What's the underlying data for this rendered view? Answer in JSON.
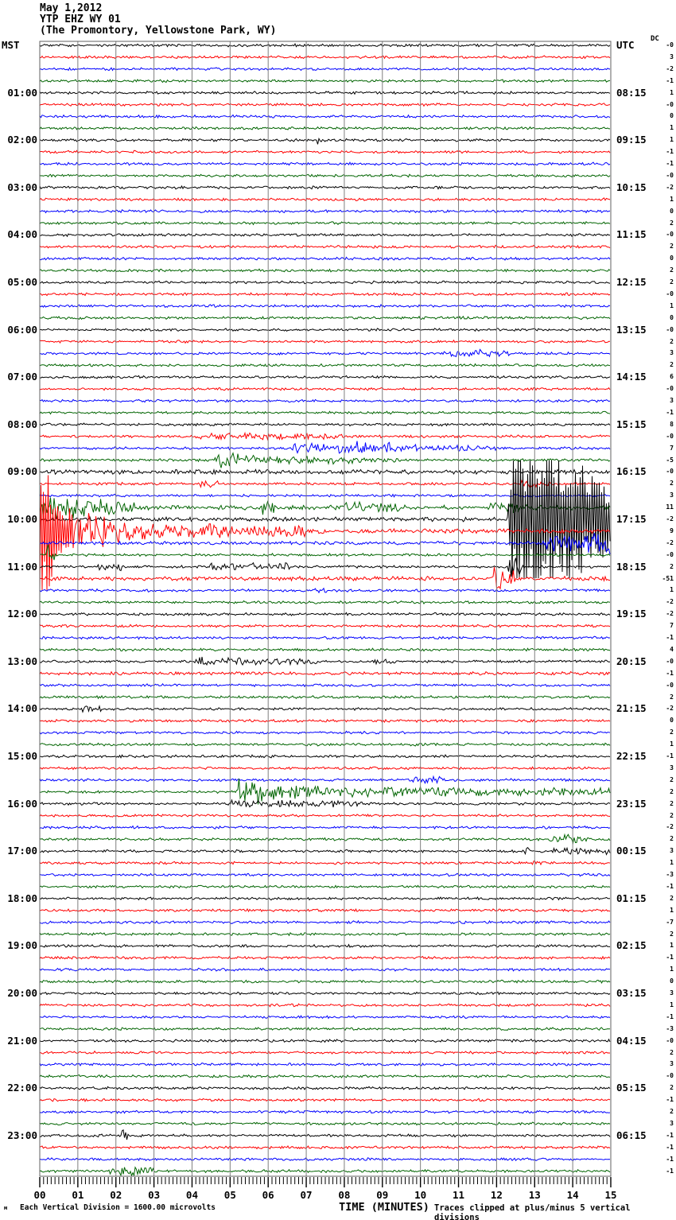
{
  "title": {
    "date": "May 1,2012",
    "station": "YTP EHZ WY 01",
    "location": "(The Promontory, Yellowstone Park, WY)"
  },
  "axes": {
    "left_tz": "MST",
    "right_tz": "UTC",
    "dc_header": "DC",
    "x_title": "TIME (MINUTES)",
    "x_ticks": [
      "00",
      "01",
      "02",
      "03",
      "04",
      "05",
      "06",
      "07",
      "08",
      "09",
      "10",
      "11",
      "12",
      "13",
      "14",
      "15"
    ]
  },
  "footer": {
    "scale": "Each Vertical Division = 1600.00 microvolts",
    "clip_note": "Traces clipped at plus/minus 5 vertical divisions",
    "watermark": "м"
  },
  "colors": {
    "k": "#000000",
    "r": "#ff0000",
    "b": "#0000ff",
    "g": "#006400",
    "grid": "#7f7f7f",
    "frame": "#606060"
  },
  "chart_data": {
    "type": "line",
    "subtype": "seismogram-helicorder",
    "x_label": "TIME (MINUTES)",
    "x_range": [
      0,
      15
    ],
    "minutes_per_line": 15,
    "lines_per_hour": 4,
    "clip_divisions": 5,
    "microvolts_per_division": "1600.00",
    "rows": [
      {
        "c": "k",
        "l": "MST",
        "r": "UTC",
        "dc": "-0"
      },
      {
        "c": "r",
        "dc": "3"
      },
      {
        "c": "b",
        "dc": "-2"
      },
      {
        "c": "g",
        "dc": "-1"
      },
      {
        "c": "k",
        "l": "01:00",
        "r": "08:15",
        "dc": "1"
      },
      {
        "c": "r",
        "dc": "-0"
      },
      {
        "c": "b",
        "dc": "0"
      },
      {
        "c": "g",
        "dc": "1"
      },
      {
        "c": "k",
        "l": "02:00",
        "r": "09:15",
        "dc": "1",
        "e": [
          [
            7.25,
            7.45,
            7,
            7
          ]
        ]
      },
      {
        "c": "r",
        "dc": "-1"
      },
      {
        "c": "b",
        "dc": "-1"
      },
      {
        "c": "g",
        "dc": "-0"
      },
      {
        "c": "k",
        "l": "03:00",
        "r": "10:15",
        "dc": "-2"
      },
      {
        "c": "r",
        "dc": "1"
      },
      {
        "c": "b",
        "dc": "0"
      },
      {
        "c": "g",
        "dc": "2"
      },
      {
        "c": "k",
        "l": "04:00",
        "r": "11:15",
        "dc": "-0"
      },
      {
        "c": "r",
        "dc": "2"
      },
      {
        "c": "b",
        "dc": "0"
      },
      {
        "c": "g",
        "dc": "2"
      },
      {
        "c": "k",
        "l": "05:00",
        "r": "12:15",
        "dc": "2"
      },
      {
        "c": "r",
        "dc": "-0"
      },
      {
        "c": "b",
        "dc": "1"
      },
      {
        "c": "g",
        "dc": "0"
      },
      {
        "c": "k",
        "l": "06:00",
        "r": "13:15",
        "dc": "-0"
      },
      {
        "c": "r",
        "dc": "2"
      },
      {
        "c": "b",
        "dc": "3",
        "e": [
          [
            10.6,
            12.4,
            2.5,
            2.5
          ]
        ]
      },
      {
        "c": "g",
        "dc": "2"
      },
      {
        "c": "k",
        "l": "07:00",
        "r": "14:15",
        "dc": "6"
      },
      {
        "c": "r",
        "dc": "-0"
      },
      {
        "c": "b",
        "dc": "3"
      },
      {
        "c": "g",
        "dc": "-1"
      },
      {
        "c": "k",
        "l": "08:00",
        "r": "15:15",
        "dc": "8"
      },
      {
        "c": "r",
        "dc": "-0",
        "e": [
          [
            4,
            8,
            2,
            1.8
          ]
        ]
      },
      {
        "c": "b",
        "dc": "7",
        "e": [
          [
            6.6,
            8,
            4,
            5
          ],
          [
            8,
            9.6,
            6,
            4.5
          ],
          [
            9.6,
            12,
            2.5,
            1.8
          ]
        ]
      },
      {
        "c": "g",
        "dc": "-5",
        "e": [
          [
            4.6,
            5.3,
            7,
            5
          ],
          [
            5.3,
            7.5,
            4,
            3
          ],
          [
            7.5,
            9.5,
            2.5,
            1.5
          ]
        ]
      },
      {
        "c": "k",
        "l": "09:00",
        "r": "16:15",
        "dc": "-0",
        "b": 2.3
      },
      {
        "c": "r",
        "dc": "2",
        "e": [
          [
            4.2,
            4.7,
            3,
            3
          ],
          [
            12.6,
            13.4,
            3,
            3
          ]
        ]
      },
      {
        "c": "b",
        "dc": "3"
      },
      {
        "c": "g",
        "dc": "11",
        "b": 2.4,
        "e": [
          [
            0,
            0.6,
            14,
            9
          ],
          [
            0.6,
            2.5,
            9,
            4
          ],
          [
            5.8,
            6.2,
            5,
            5
          ],
          [
            8,
            9.5,
            4.5,
            3.5
          ],
          [
            11.7,
            12.8,
            3.5,
            3
          ]
        ]
      },
      {
        "c": "k",
        "l": "10:00",
        "r": "17:15",
        "dc": "-2",
        "b": 2.2,
        "e": [
          [
            12.3,
            12.45,
            20,
            95
          ],
          [
            12.45,
            13.4,
            95,
            95
          ],
          [
            13.4,
            15,
            95,
            40
          ]
        ]
      },
      {
        "c": "r",
        "dc": "9",
        "b": 2.4,
        "e": [
          [
            0,
            0.35,
            95,
            60
          ],
          [
            0.35,
            0.9,
            40,
            25
          ],
          [
            0.9,
            1.8,
            22,
            12
          ],
          [
            1.8,
            3.5,
            12,
            6
          ],
          [
            3.5,
            7,
            6,
            3.5
          ]
        ]
      },
      {
        "c": "b",
        "dc": "-2",
        "b": 1.8,
        "e": [
          [
            13.2,
            15,
            9,
            12
          ]
        ]
      },
      {
        "c": "g",
        "dc": "-0",
        "e": [
          [
            0.18,
            0.38,
            9,
            7
          ]
        ]
      },
      {
        "c": "k",
        "l": "11:00",
        "r": "18:15",
        "dc": "2",
        "e": [
          [
            1.5,
            2.2,
            3,
            3
          ],
          [
            4.4,
            6.6,
            3.5,
            3
          ],
          [
            12.3,
            12.65,
            15,
            12
          ]
        ]
      },
      {
        "c": "r",
        "dc": "-51",
        "b": 2.2,
        "e": [
          [
            11.9,
            12.5,
            10,
            8
          ]
        ]
      },
      {
        "c": "b",
        "dc": "1",
        "e": [
          [
            7.2,
            7.6,
            2.5,
            2.5
          ]
        ]
      },
      {
        "c": "g",
        "dc": "-2"
      },
      {
        "c": "k",
        "l": "12:00",
        "r": "19:15",
        "dc": "-2"
      },
      {
        "c": "r",
        "dc": "7"
      },
      {
        "c": "b",
        "dc": "-1"
      },
      {
        "c": "g",
        "dc": "4"
      },
      {
        "c": "k",
        "l": "13:00",
        "r": "20:15",
        "dc": "-0",
        "e": [
          [
            4.1,
            4.9,
            4,
            4
          ],
          [
            4.9,
            7.3,
            3,
            2.2
          ],
          [
            8.8,
            9.4,
            2.5,
            2.5
          ]
        ]
      },
      {
        "c": "r",
        "dc": "-1",
        "b": 1.7
      },
      {
        "c": "b",
        "dc": "-0"
      },
      {
        "c": "g",
        "dc": "2"
      },
      {
        "c": "k",
        "l": "14:00",
        "r": "21:15",
        "dc": "-2",
        "e": [
          [
            1.1,
            1.6,
            2.5,
            2.5
          ]
        ]
      },
      {
        "c": "r",
        "dc": "0"
      },
      {
        "c": "b",
        "dc": "2"
      },
      {
        "c": "g",
        "dc": "1"
      },
      {
        "c": "k",
        "l": "15:00",
        "r": "22:15",
        "dc": "-1"
      },
      {
        "c": "r",
        "dc": "3"
      },
      {
        "c": "b",
        "dc": "2",
        "e": [
          [
            9.8,
            10.6,
            2.5,
            2.5
          ]
        ]
      },
      {
        "c": "g",
        "dc": "2",
        "e": [
          [
            5.2,
            5.5,
            18,
            14
          ],
          [
            5.5,
            6.5,
            12,
            8
          ],
          [
            6.5,
            9,
            6,
            4
          ],
          [
            9,
            15,
            4,
            3
          ]
        ]
      },
      {
        "c": "k",
        "l": "16:00",
        "r": "23:15",
        "dc": "2",
        "e": [
          [
            5,
            8.5,
            2.5,
            2.5
          ]
        ]
      },
      {
        "c": "r",
        "dc": "2"
      },
      {
        "c": "b",
        "dc": "-2"
      },
      {
        "c": "g",
        "dc": "2",
        "e": [
          [
            13.4,
            14.4,
            3.5,
            3
          ]
        ]
      },
      {
        "c": "k",
        "l": "17:00",
        "r": "00:15",
        "dc": "3",
        "e": [
          [
            12.75,
            12.87,
            9,
            9
          ],
          [
            13.4,
            15,
            2.5,
            2.5
          ]
        ]
      },
      {
        "c": "r",
        "dc": "1",
        "e": [
          [
            12.9,
            13.3,
            2.5,
            2.5
          ]
        ]
      },
      {
        "c": "b",
        "dc": "-3"
      },
      {
        "c": "g",
        "dc": "-1"
      },
      {
        "c": "k",
        "l": "18:00",
        "r": "01:15",
        "dc": "2"
      },
      {
        "c": "r",
        "dc": "1"
      },
      {
        "c": "b",
        "dc": "-7"
      },
      {
        "c": "g",
        "dc": "2"
      },
      {
        "c": "k",
        "l": "19:00",
        "r": "02:15",
        "dc": "1"
      },
      {
        "c": "r",
        "dc": "-1"
      },
      {
        "c": "b",
        "dc": "1"
      },
      {
        "c": "g",
        "dc": "0"
      },
      {
        "c": "k",
        "l": "20:00",
        "r": "03:15",
        "dc": "3"
      },
      {
        "c": "r",
        "dc": "1"
      },
      {
        "c": "b",
        "dc": "-1"
      },
      {
        "c": "g",
        "dc": "-3"
      },
      {
        "c": "k",
        "l": "21:00",
        "r": "04:15",
        "dc": "-0"
      },
      {
        "c": "r",
        "dc": "2"
      },
      {
        "c": "b",
        "dc": "3"
      },
      {
        "c": "g",
        "dc": "-0"
      },
      {
        "c": "k",
        "l": "22:00",
        "r": "05:15",
        "dc": "2"
      },
      {
        "c": "r",
        "dc": "-1"
      },
      {
        "c": "b",
        "dc": "2"
      },
      {
        "c": "g",
        "dc": "3"
      },
      {
        "c": "k",
        "l": "23:00",
        "r": "06:15",
        "dc": "-1",
        "e": [
          [
            2.15,
            2.3,
            6,
            6
          ]
        ]
      },
      {
        "c": "r",
        "dc": "-1"
      },
      {
        "c": "b",
        "dc": "-1"
      },
      {
        "c": "g",
        "dc": "-1",
        "e": [
          [
            1.7,
            3.1,
            4.5,
            3.5
          ]
        ]
      }
    ]
  }
}
